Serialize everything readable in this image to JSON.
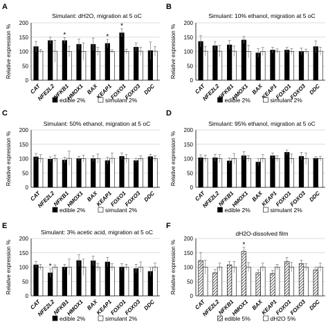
{
  "figure": {
    "genes": [
      "CAT",
      "NFE2L2",
      "NFKB1",
      "HMOX1",
      "BAX",
      "KEAP1",
      "FOXO1",
      "FOXO3",
      "DDC"
    ]
  },
  "chart_data": [
    {
      "panel": "A",
      "type": "bar",
      "title": "Simulant: dH2O, migration at 5 oC",
      "ylabel": "Relative expression %",
      "ylim": [
        0,
        200
      ],
      "yticks": [
        0,
        50,
        100,
        150,
        200
      ],
      "categories": [
        "CAT",
        "NFE2L2",
        "NFKB1",
        "HMOX1",
        "BAX",
        "KEAP1",
        "FOXO1",
        "FOXO3",
        "DDC"
      ],
      "series": [
        {
          "name": "edible 2%",
          "color": "#000000",
          "values": [
            117,
            138,
            138,
            125,
            125,
            128,
            165,
            115,
            103
          ],
          "errors": [
            18,
            12,
            10,
            18,
            22,
            14,
            14,
            15,
            30
          ]
        },
        {
          "name": "simulant 2%",
          "color": "#ffffff",
          "values": [
            101,
            101,
            100,
            100,
            100,
            100,
            100,
            101,
            101
          ],
          "errors": [
            6,
            38,
            18,
            30,
            14,
            6,
            8,
            14,
            16
          ]
        }
      ],
      "significance": [
        {
          "category": "NFKB1",
          "series": "edible 2%",
          "mark": "*"
        },
        {
          "category": "KEAP1",
          "series": "edible 2%",
          "mark": "*"
        },
        {
          "category": "FOXO1",
          "series": "edible 2%",
          "mark": "*"
        }
      ],
      "legend": "bottom"
    },
    {
      "panel": "B",
      "type": "bar",
      "title": "Simulant: 10% ethanol, migration at 5 oC",
      "ylabel": "Relative expression %",
      "ylim": [
        0,
        200
      ],
      "yticks": [
        0,
        50,
        100,
        150,
        200
      ],
      "categories": [
        "CAT",
        "NFE2L2",
        "NFKB1",
        "HMOX1",
        "BAX",
        "KEAP1",
        "FOXO1",
        "FOXO3",
        "DDC"
      ],
      "series": [
        {
          "name": "edible 2%",
          "color": "#000000",
          "values": [
            135,
            120,
            123,
            140,
            95,
            105,
            105,
            100,
            117
          ],
          "errors": [
            20,
            15,
            15,
            12,
            15,
            10,
            10,
            12,
            20
          ]
        },
        {
          "name": "simulant 2%",
          "color": "#ffffff",
          "values": [
            101,
            101,
            101,
            100,
            100,
            101,
            100,
            100,
            101
          ],
          "errors": [
            16,
            20,
            18,
            22,
            14,
            8,
            10,
            8,
            14
          ]
        }
      ],
      "significance": [],
      "legend": "bottom"
    },
    {
      "panel": "C",
      "type": "bar",
      "title": "Simulant: 50% ethanol, migration at 5 oC",
      "ylabel": "Relative expression %",
      "ylim": [
        0,
        200
      ],
      "yticks": [
        0,
        50,
        100,
        150,
        200
      ],
      "categories": [
        "CAT",
        "NFE2L2",
        "NFKB1",
        "HMOX1",
        "BAX",
        "KEAP1",
        "FOXO1",
        "FOXO3",
        "DDC"
      ],
      "series": [
        {
          "name": "edible 2%",
          "color": "#000000",
          "values": [
            106,
            98,
            95,
            100,
            100,
            93,
            108,
            93,
            107
          ],
          "errors": [
            12,
            8,
            10,
            8,
            10,
            12,
            12,
            8,
            8
          ]
        },
        {
          "name": "simulant 2%",
          "color": "#ffffff",
          "values": [
            100,
            100,
            101,
            100,
            100,
            101,
            100,
            100,
            100
          ],
          "errors": [
            14,
            12,
            25,
            12,
            16,
            18,
            14,
            10,
            10
          ]
        }
      ],
      "significance": [],
      "legend": "bottom"
    },
    {
      "panel": "D",
      "type": "bar",
      "title": "Simulant: 95% ethanol, migration at 5 oC",
      "ylabel": "Relative expression %",
      "ylim": [
        0,
        200
      ],
      "yticks": [
        0,
        50,
        100,
        150,
        200
      ],
      "categories": [
        "CAT",
        "NFE2L2",
        "NFKB1",
        "HMOX1",
        "BAX",
        "KEAP1",
        "FOXO1",
        "FOXO3",
        "DDC"
      ],
      "series": [
        {
          "name": "edible 2%",
          "color": "#000000",
          "values": [
            103,
            103,
            92,
            110,
            88,
            110,
            122,
            108,
            101
          ],
          "errors": [
            10,
            12,
            10,
            14,
            12,
            10,
            8,
            14,
            6
          ]
        },
        {
          "name": "simulant 2%",
          "color": "#ffffff",
          "values": [
            100,
            100,
            100,
            100,
            100,
            100,
            100,
            100,
            100
          ],
          "errors": [
            12,
            14,
            18,
            10,
            14,
            10,
            16,
            20,
            8
          ]
        }
      ],
      "significance": [],
      "legend": "bottom"
    },
    {
      "panel": "E",
      "type": "bar",
      "title": "Simulant: 3% acetic acid, migration at 5 oC",
      "ylabel": "Relative expression %",
      "ylim": [
        0,
        200
      ],
      "yticks": [
        0,
        50,
        100,
        150,
        200
      ],
      "categories": [
        "CAT",
        "NFE2L2",
        "NFKB1",
        "HMOX1",
        "BAX",
        "KEAP1",
        "FOXO1",
        "FOXO3",
        "DDC"
      ],
      "series": [
        {
          "name": "edible 2%",
          "color": "#000000",
          "values": [
            108,
            80,
            100,
            123,
            122,
            118,
            100,
            95,
            85
          ],
          "errors": [
            12,
            14,
            10,
            20,
            16,
            16,
            12,
            15,
            15
          ]
        },
        {
          "name": "simulant 2%",
          "color": "#ffffff",
          "values": [
            100,
            100,
            100,
            100,
            100,
            100,
            100,
            100,
            100
          ],
          "errors": [
            10,
            8,
            28,
            28,
            12,
            12,
            10,
            18,
            14
          ]
        }
      ],
      "significance": [
        {
          "category": "NFE2L2",
          "series": "edible 2%",
          "mark": "*"
        }
      ],
      "legend": "bottom"
    },
    {
      "panel": "F",
      "type": "bar",
      "title": "dH2O-dissolved film",
      "ylabel": "Relative expression %",
      "ylim": [
        0,
        200
      ],
      "yticks": [
        0,
        50,
        100,
        150,
        200
      ],
      "categories": [
        "CAT",
        "NFE2L2",
        "NFKB1",
        "HMOX1",
        "BAX",
        "KEAP1",
        "FOXO1",
        "FOXO3",
        "DDC"
      ],
      "series": [
        {
          "name": "edible 5%",
          "color": "#555555",
          "pattern": "diagonal-hatch",
          "values": [
            123,
            80,
            108,
            155,
            80,
            78,
            120,
            112,
            90
          ],
          "errors": [
            28,
            12,
            12,
            14,
            10,
            10,
            14,
            12,
            10
          ]
        },
        {
          "name": "dH2O 5%",
          "color": "#ffffff",
          "values": [
            100,
            100,
            100,
            100,
            100,
            100,
            100,
            100,
            100
          ],
          "errors": [
            24,
            14,
            20,
            16,
            14,
            10,
            16,
            12,
            14
          ]
        }
      ],
      "significance": [
        {
          "category": "HMOX1",
          "series": "edible 5%",
          "mark": "*"
        }
      ],
      "legend": "bottom"
    }
  ]
}
